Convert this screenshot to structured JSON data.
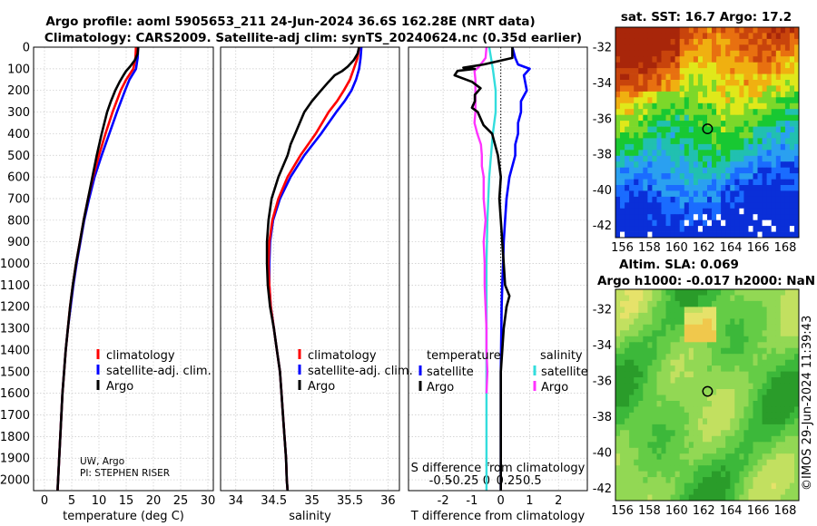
{
  "title_line1": "Argo profile: aoml 5905653_211 24-Jun-2024 36.6S 162.28E (NRT data)",
  "title_line2": "Climatology: CARS2009. Satellite-adj clim: synTS_20240624.nc (0.35d earlier)",
  "sst_title": "sat. SST: 16.7 Argo: 17.2",
  "sla_title1": "Altim. SLA: 0.069",
  "sla_title2": "Argo h1000: -0.017 h2000: NaN",
  "credit": "©IMOS 29-Jun-2024 11:39:43",
  "note_line1": "UW, Argo",
  "note_line2": "PI: STEPHEN RISER",
  "colors": {
    "climatology": "#ff0000",
    "satellite": "#0000ff",
    "argo": "#000000",
    "sat_diff_s": "#33dddd",
    "argo_diff_s": "#ff33ff"
  },
  "chart_data": [
    {
      "name": "temperature",
      "type": "line",
      "xlabel": "temperature (deg C)",
      "xlim": [
        -2,
        31
      ],
      "xticks": [
        0,
        5,
        10,
        15,
        20,
        25,
        30
      ],
      "ylim": [
        0,
        2050
      ],
      "yticks": [
        0,
        100,
        200,
        300,
        400,
        500,
        600,
        700,
        800,
        900,
        1000,
        1100,
        1200,
        1300,
        1400,
        1500,
        1600,
        1700,
        1800,
        1900,
        2000
      ],
      "legend": [
        "climatology",
        "satellite-adj. clim.",
        "Argo"
      ],
      "series": [
        {
          "name": "climatology",
          "color": "#ff0000",
          "depth": [
            0,
            50,
            100,
            150,
            200,
            300,
            400,
            500,
            600,
            700,
            800,
            900,
            1000,
            1100,
            1200,
            1300,
            1400,
            1500,
            1600,
            1700,
            1800,
            1900,
            2000,
            2050
          ],
          "values": [
            16.8,
            16.7,
            16.3,
            15.0,
            14.0,
            12.5,
            11.2,
            10.0,
            8.9,
            8.0,
            7.2,
            6.5,
            5.8,
            5.2,
            4.7,
            4.3,
            3.9,
            3.6,
            3.3,
            3.1,
            2.9,
            2.7,
            2.5,
            2.4
          ]
        },
        {
          "name": "satellite-adj. clim.",
          "color": "#0000ff",
          "depth": [
            0,
            50,
            100,
            150,
            200,
            300,
            400,
            500,
            600,
            700,
            800,
            900,
            1000,
            1100,
            1200,
            1300,
            1400,
            1500,
            1600,
            1700,
            1800,
            1900,
            2000,
            2050
          ],
          "values": [
            17.2,
            17.1,
            16.8,
            15.6,
            14.8,
            13.3,
            11.9,
            10.5,
            9.2,
            8.2,
            7.3,
            6.6,
            5.9,
            5.3,
            4.8,
            4.3,
            3.9,
            3.6,
            3.3,
            3.1,
            2.9,
            2.7,
            2.5,
            2.4
          ]
        },
        {
          "name": "Argo",
          "color": "#000000",
          "depth": [
            0,
            30,
            60,
            90,
            110,
            130,
            160,
            200,
            250,
            300,
            400,
            500,
            600,
            700,
            800,
            900,
            1000,
            1100,
            1200,
            1300,
            1400,
            1500,
            1600,
            1700,
            1800,
            1900,
            2000,
            2050
          ],
          "values": [
            17.2,
            17.1,
            16.6,
            15.7,
            15.0,
            14.5,
            13.8,
            13.0,
            12.2,
            11.5,
            10.5,
            9.6,
            8.8,
            8.0,
            7.2,
            6.5,
            5.8,
            5.2,
            4.7,
            4.3,
            3.9,
            3.6,
            3.3,
            3.1,
            2.9,
            2.7,
            2.5,
            2.4
          ]
        }
      ]
    },
    {
      "name": "salinity",
      "type": "line",
      "xlabel": "salinity",
      "xlim": [
        33.8,
        36.15
      ],
      "xticks": [
        34,
        34.5,
        35,
        35.5,
        36
      ],
      "ylim": [
        0,
        2050
      ],
      "legend": [
        "climatology",
        "satellite-adj. clim.",
        "Argo"
      ],
      "series": [
        {
          "name": "climatology",
          "color": "#ff0000",
          "depth": [
            0,
            50,
            100,
            150,
            200,
            250,
            300,
            400,
            500,
            600,
            700,
            800,
            900,
            1000,
            1100,
            1200,
            1300,
            1400,
            1500,
            1600,
            1700,
            1800,
            1900,
            2000,
            2050
          ],
          "values": [
            35.62,
            35.6,
            35.55,
            35.5,
            35.42,
            35.33,
            35.22,
            35.05,
            34.85,
            34.68,
            34.56,
            34.48,
            34.44,
            34.43,
            34.44,
            34.46,
            34.5,
            34.54,
            34.58,
            34.6,
            34.62,
            34.64,
            34.66,
            34.67,
            34.68
          ]
        },
        {
          "name": "satellite-adj. clim.",
          "color": "#0000ff",
          "depth": [
            0,
            50,
            100,
            150,
            200,
            250,
            300,
            400,
            500,
            600,
            700,
            800,
            900,
            1000,
            1100,
            1200,
            1300,
            1400,
            1500,
            1600,
            1700,
            1800,
            1900,
            2000,
            2050
          ],
          "values": [
            35.65,
            35.64,
            35.62,
            35.58,
            35.52,
            35.43,
            35.32,
            35.12,
            34.9,
            34.72,
            34.58,
            34.49,
            34.45,
            34.44,
            34.44,
            34.46,
            34.5,
            34.54,
            34.58,
            34.6,
            34.62,
            34.64,
            34.66,
            34.67,
            34.68
          ]
        },
        {
          "name": "Argo",
          "color": "#000000",
          "depth": [
            0,
            30,
            60,
            90,
            110,
            130,
            160,
            200,
            250,
            300,
            350,
            400,
            450,
            500,
            600,
            700,
            800,
            900,
            1000,
            1100,
            1200,
            1300,
            1400,
            1500,
            1600,
            1700,
            1800,
            1900,
            2000,
            2050
          ],
          "values": [
            35.62,
            35.6,
            35.55,
            35.47,
            35.4,
            35.3,
            35.22,
            35.12,
            35.0,
            34.9,
            34.84,
            34.78,
            34.72,
            34.68,
            34.56,
            34.47,
            34.43,
            34.41,
            34.41,
            34.42,
            34.45,
            34.5,
            34.54,
            34.58,
            34.6,
            34.62,
            34.64,
            34.66,
            34.67,
            34.68
          ]
        }
      ]
    },
    {
      "name": "differences",
      "type": "line",
      "xlabel": "T difference from climatology",
      "xlabel2": "S difference from climatology",
      "xlim": [
        -3.2,
        3.0
      ],
      "xticks": [
        -2,
        -1,
        0,
        1,
        2
      ],
      "sticks": [
        -0.5,
        -0.25,
        0,
        0.25,
        0.5
      ],
      "slabels": [
        "-0.5",
        "-0.25",
        "0",
        "0.25",
        "0.5"
      ],
      "legend_headers": [
        "temperature",
        "salinity"
      ],
      "legend_t": [
        "satellite",
        "Argo"
      ],
      "legend_s": [
        "satellite",
        "Argo"
      ],
      "ylim": [
        0,
        2050
      ],
      "series": [
        {
          "name": "T satellite",
          "color": "#0000ff",
          "depth": [
            0,
            50,
            80,
            100,
            130,
            200,
            250,
            300,
            350,
            400,
            450,
            500,
            600,
            700,
            800,
            900,
            1000,
            1100,
            1200,
            1300,
            1400,
            1500,
            1600,
            1700,
            1800,
            1900,
            2000,
            2050
          ],
          "values": [
            0.4,
            0.5,
            0.6,
            1.0,
            0.8,
            0.9,
            0.7,
            0.7,
            0.6,
            0.6,
            0.5,
            0.5,
            0.3,
            0.2,
            0.15,
            0.1,
            0.08,
            0.05,
            0.03,
            0.02,
            0.01,
            0.0,
            0.0,
            0.0,
            0.0,
            0.0,
            0.0,
            0.0
          ]
        },
        {
          "name": "T Argo",
          "color": "#000000",
          "depth": [
            0,
            50,
            80,
            95,
            100,
            110,
            130,
            160,
            190,
            220,
            250,
            280,
            300,
            330,
            360,
            400,
            450,
            500,
            600,
            700,
            800,
            900,
            1000,
            1100,
            1150,
            1200,
            1300,
            1400,
            1500,
            1600,
            1700,
            1800,
            1900,
            2000,
            2050
          ],
          "values": [
            0.4,
            0.4,
            -0.6,
            -1.3,
            -0.9,
            -1.5,
            -1.6,
            -1.0,
            -0.7,
            -0.9,
            -0.9,
            -1.0,
            -0.8,
            -0.7,
            -0.6,
            -0.3,
            -0.2,
            -0.1,
            0.0,
            -0.05,
            0.0,
            0.05,
            0.1,
            0.15,
            0.3,
            0.2,
            0.1,
            0.05,
            0.0,
            0.0,
            0.0,
            0.0,
            0.0,
            0.0,
            0.0
          ]
        },
        {
          "name": "S satellite",
          "color": "#33dddd",
          "depth": [
            0,
            50,
            100,
            200,
            300,
            400,
            500,
            600,
            800,
            1000,
            1200,
            1400,
            1600,
            1800,
            2000,
            2050
          ],
          "values": [
            0.03,
            0.05,
            0.07,
            0.1,
            0.1,
            0.07,
            0.05,
            0.03,
            0.01,
            0.0,
            0.0,
            0.0,
            0.0,
            0.0,
            0.0,
            0.0
          ]
        },
        {
          "name": "S Argo",
          "color": "#ff33ff",
          "depth": [
            0,
            50,
            90,
            110,
            150,
            200,
            250,
            300,
            350,
            400,
            450,
            500,
            550,
            600,
            700,
            800,
            900,
            1000,
            1100,
            1200,
            1300,
            1400,
            1500,
            1600
          ],
          "values": [
            0.0,
            -0.01,
            -0.08,
            -0.13,
            -0.12,
            -0.12,
            -0.12,
            -0.12,
            -0.13,
            -0.1,
            -0.06,
            -0.05,
            -0.05,
            -0.03,
            -0.03,
            -0.01,
            -0.03,
            -0.02,
            -0.02,
            -0.01,
            0.0,
            0.0,
            0.01,
            0.0
          ]
        }
      ]
    },
    {
      "name": "sst_map",
      "type": "heatmap",
      "title": "sat. SST: 16.7 Argo: 17.2",
      "xlim": [
        155.5,
        169
      ],
      "ylim": [
        -42.7,
        -30.9
      ],
      "xticks": [
        156,
        158,
        160,
        162,
        164,
        166,
        168
      ],
      "yticks": [
        -32,
        -34,
        -36,
        -38,
        -40,
        -42
      ],
      "marker": {
        "lon": 162.28,
        "lat": -36.6
      }
    },
    {
      "name": "sla_map",
      "type": "heatmap",
      "title": "Altim. SLA: 0.069",
      "xlim": [
        155.5,
        169
      ],
      "ylim": [
        -42.7,
        -30.9
      ],
      "xticks": [
        156,
        158,
        160,
        162,
        164,
        166,
        168
      ],
      "yticks": [
        -32,
        -34,
        -36,
        -38,
        -40,
        -42
      ],
      "marker": {
        "lon": 162.28,
        "lat": -36.6
      }
    }
  ]
}
